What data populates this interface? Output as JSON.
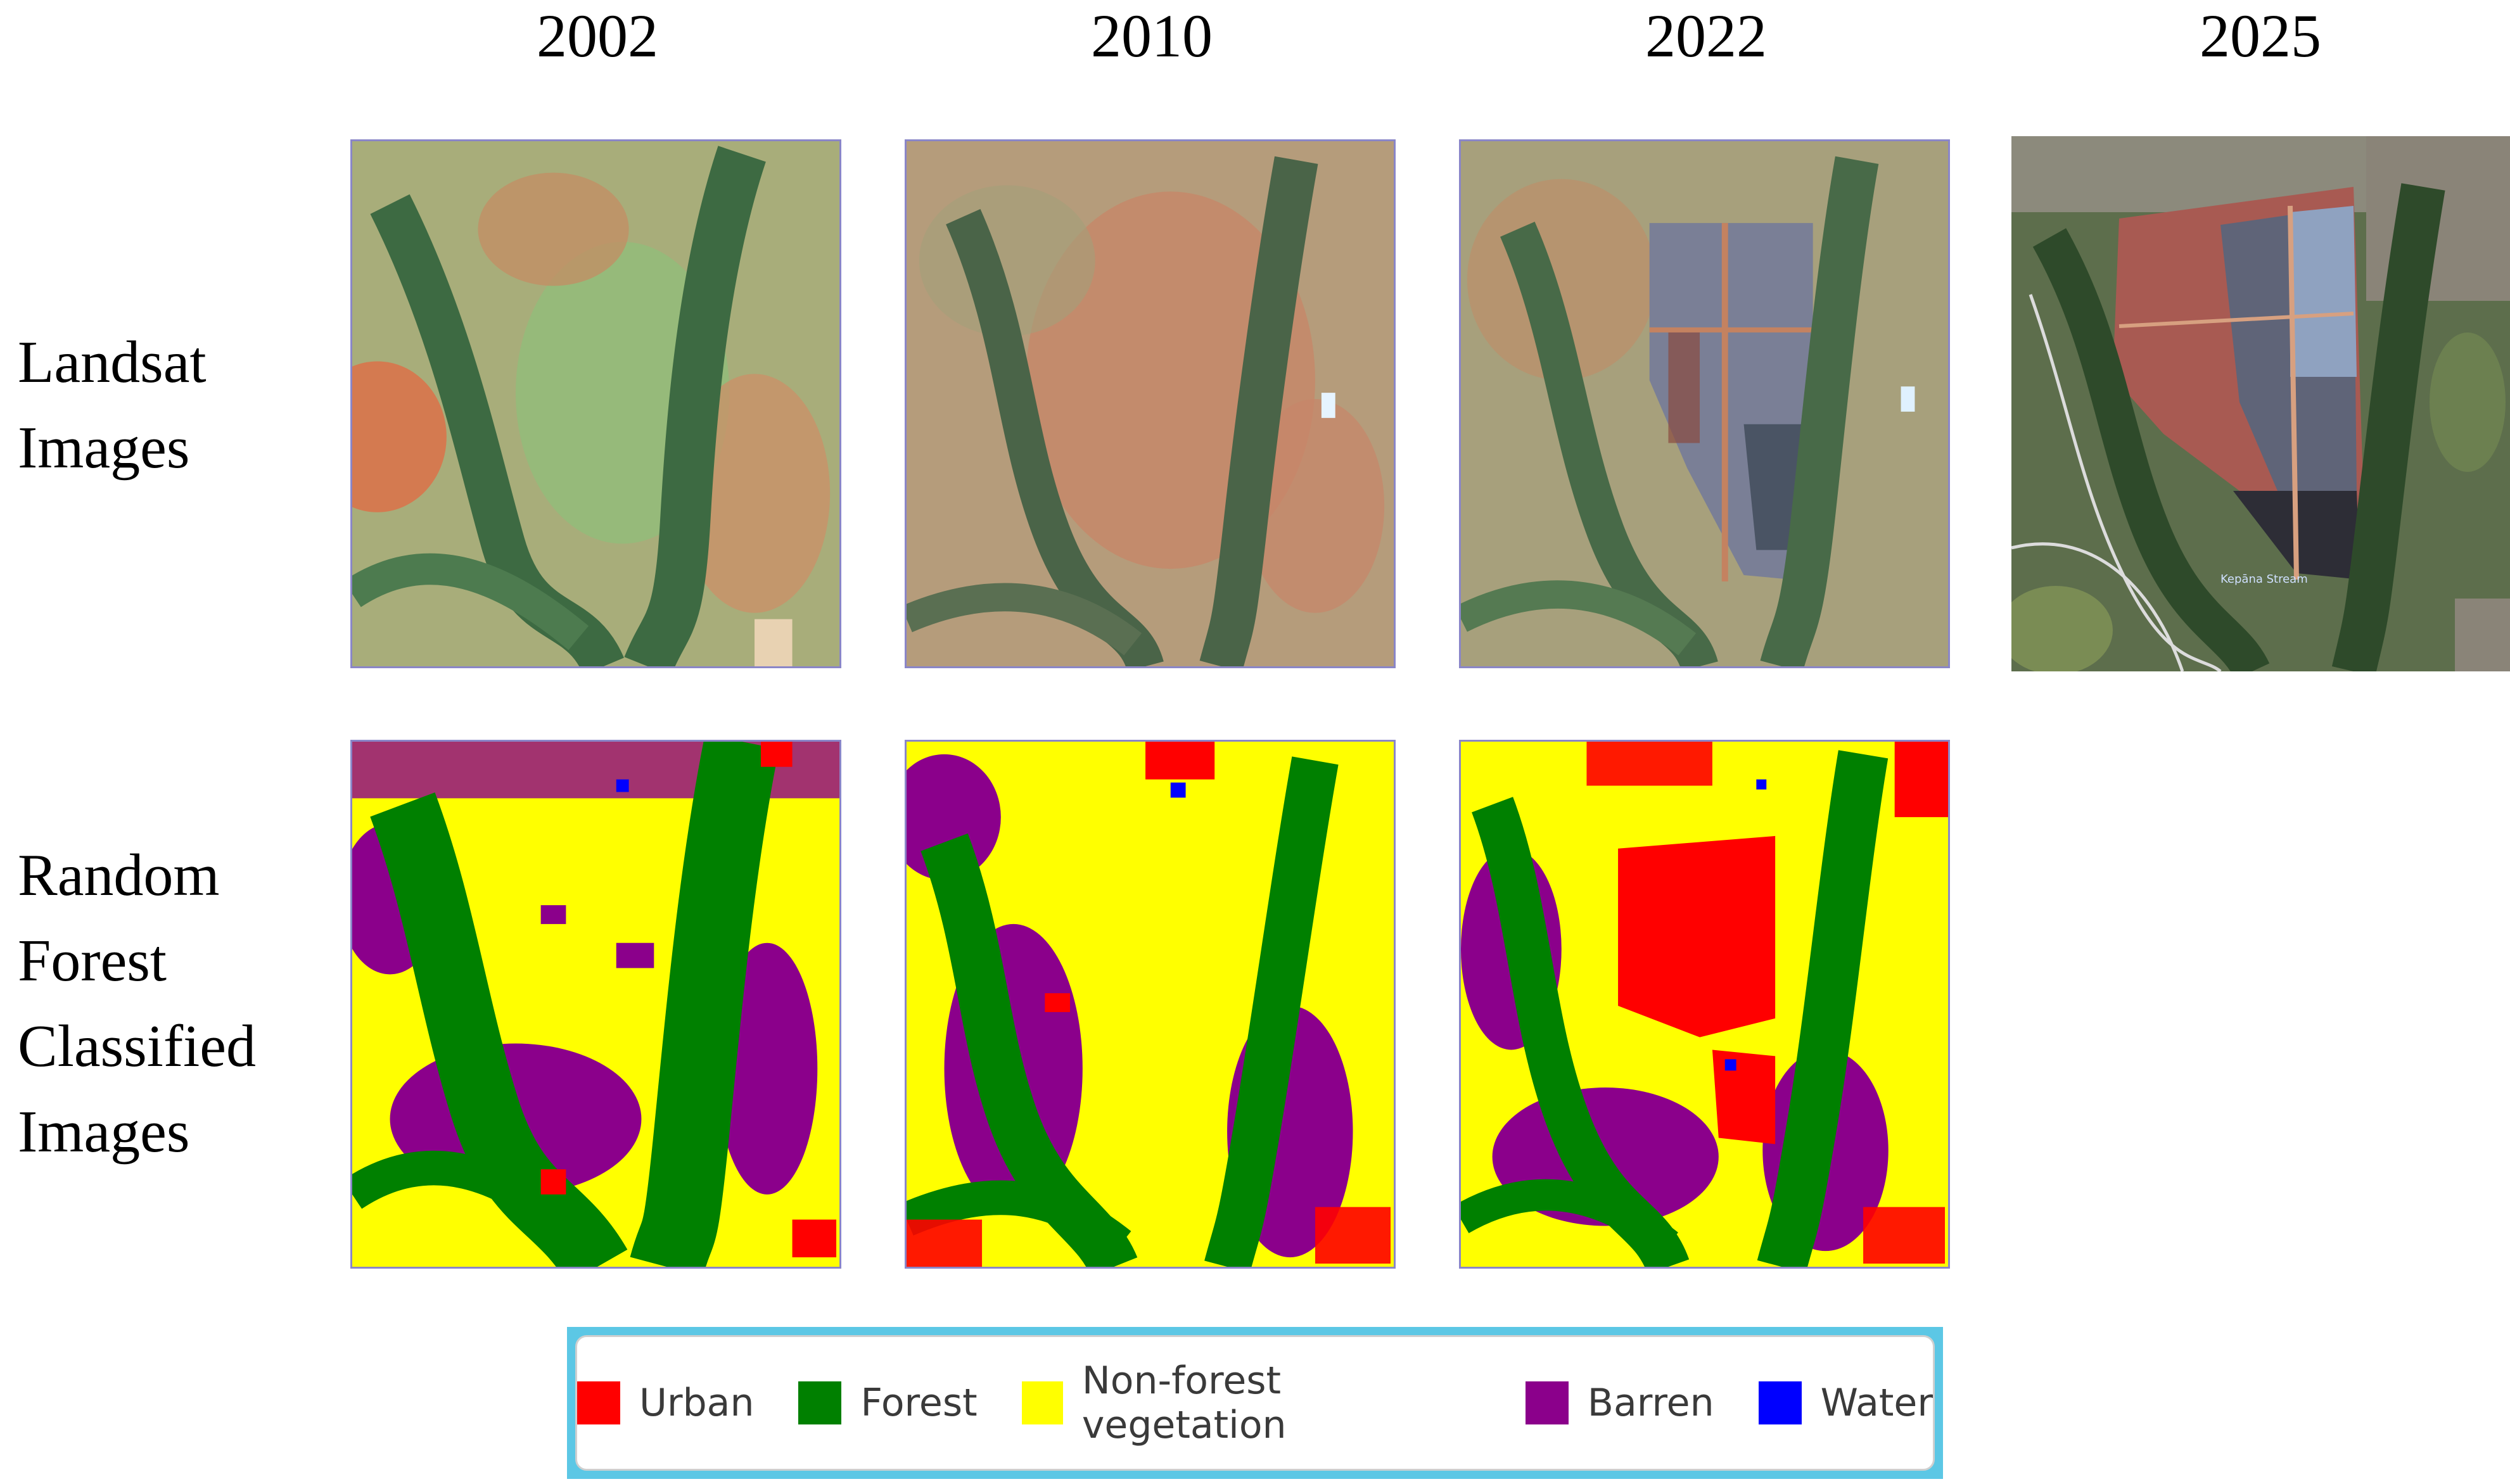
{
  "years": [
    "2002",
    "2010",
    "2022",
    "2025"
  ],
  "row_labels": {
    "landsat": [
      "Landsat",
      "Images"
    ],
    "classified": [
      "Random",
      "Forest",
      "Classified",
      "Images"
    ]
  },
  "map_annotation": "Kepāna Stream",
  "legend": [
    {
      "label": "Urban",
      "color": "#ff0000"
    },
    {
      "label": "Forest",
      "color": "#008000"
    },
    {
      "label": "Non-forest vegetation",
      "color": "#ffff00"
    },
    {
      "label": "Barren",
      "color": "#8b008b"
    },
    {
      "label": "Water",
      "color": "#0000ff"
    }
  ],
  "colors": {
    "panel_border": "#8a86c8",
    "legend_frame": "#5cc7e5"
  }
}
